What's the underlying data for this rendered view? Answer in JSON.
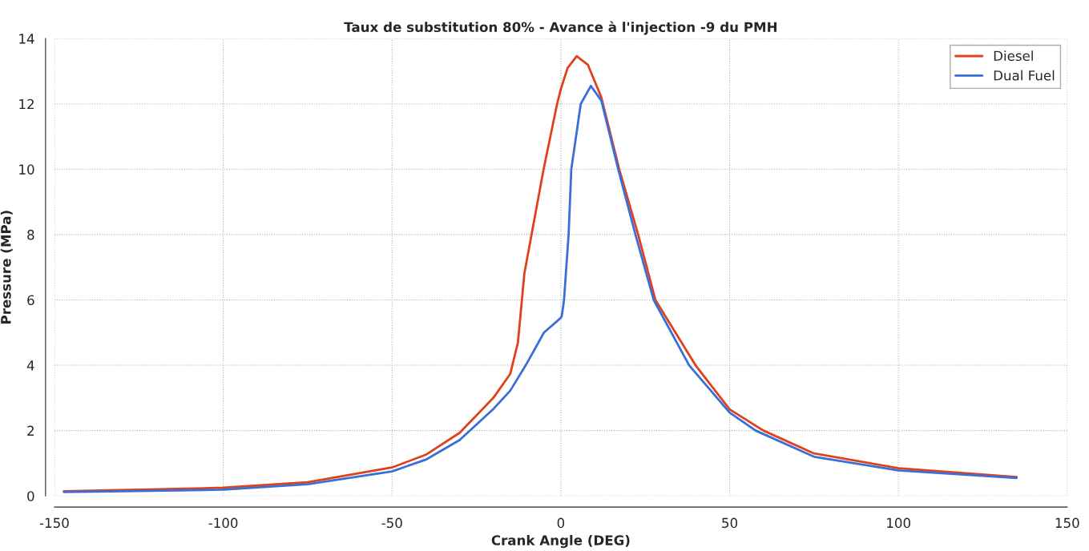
{
  "chart_data": {
    "type": "line",
    "title": "Taux de substitution 80% - Avance à l'injection -9 du PMH",
    "xlabel": "Crank Angle (DEG)",
    "ylabel": "Pressure (MPa)",
    "xlim": [
      -150,
      150
    ],
    "xticks": [
      -150,
      -100,
      -50,
      0,
      50,
      100,
      150
    ],
    "ylim": [
      0,
      14
    ],
    "yticks": [
      0,
      2,
      4,
      6,
      8,
      10,
      12,
      14
    ],
    "grid": true,
    "legend": "top right",
    "marker": "none",
    "line_style": "solid",
    "series": [
      {
        "name": "Diesel",
        "color": "#e0401c",
        "x": [
          -147.2,
          -125,
          -100,
          -75,
          -50,
          -40,
          -30,
          -20,
          -15,
          -12.7,
          -10.8,
          -5.1,
          -1.1,
          0,
          2,
          4.7,
          8,
          12,
          17.3,
          22.9,
          28,
          39.9,
          50,
          60,
          75,
          100,
          135
        ],
        "values": [
          0.14,
          0.19,
          0.25,
          0.42,
          0.87,
          1.26,
          1.93,
          3.0,
          3.73,
          4.7,
          6.81,
          10,
          12,
          12.45,
          13.1,
          13.46,
          13.2,
          12.2,
          10,
          8,
          6,
          4,
          2.65,
          2,
          1.3,
          0.85,
          0.58
        ]
      },
      {
        "name": "Dual Fuel",
        "color": "#3a6fd8",
        "x": [
          -147.2,
          -125,
          -100,
          -75,
          -50,
          -40,
          -30,
          -20,
          -15,
          -10,
          -5,
          0,
          0.3,
          0.95,
          2.3,
          3.1,
          5.9,
          8.9,
          12,
          17,
          22.1,
          27.5,
          38,
          50,
          57.7,
          75,
          100,
          135
        ],
        "values": [
          0.12,
          0.15,
          0.19,
          0.36,
          0.75,
          1.11,
          1.71,
          2.66,
          3.22,
          4.07,
          5.0,
          5.45,
          5.52,
          6,
          8,
          10,
          12,
          12.55,
          12.1,
          10,
          8,
          6,
          4,
          2.55,
          2,
          1.2,
          0.78,
          0.55
        ]
      }
    ]
  }
}
